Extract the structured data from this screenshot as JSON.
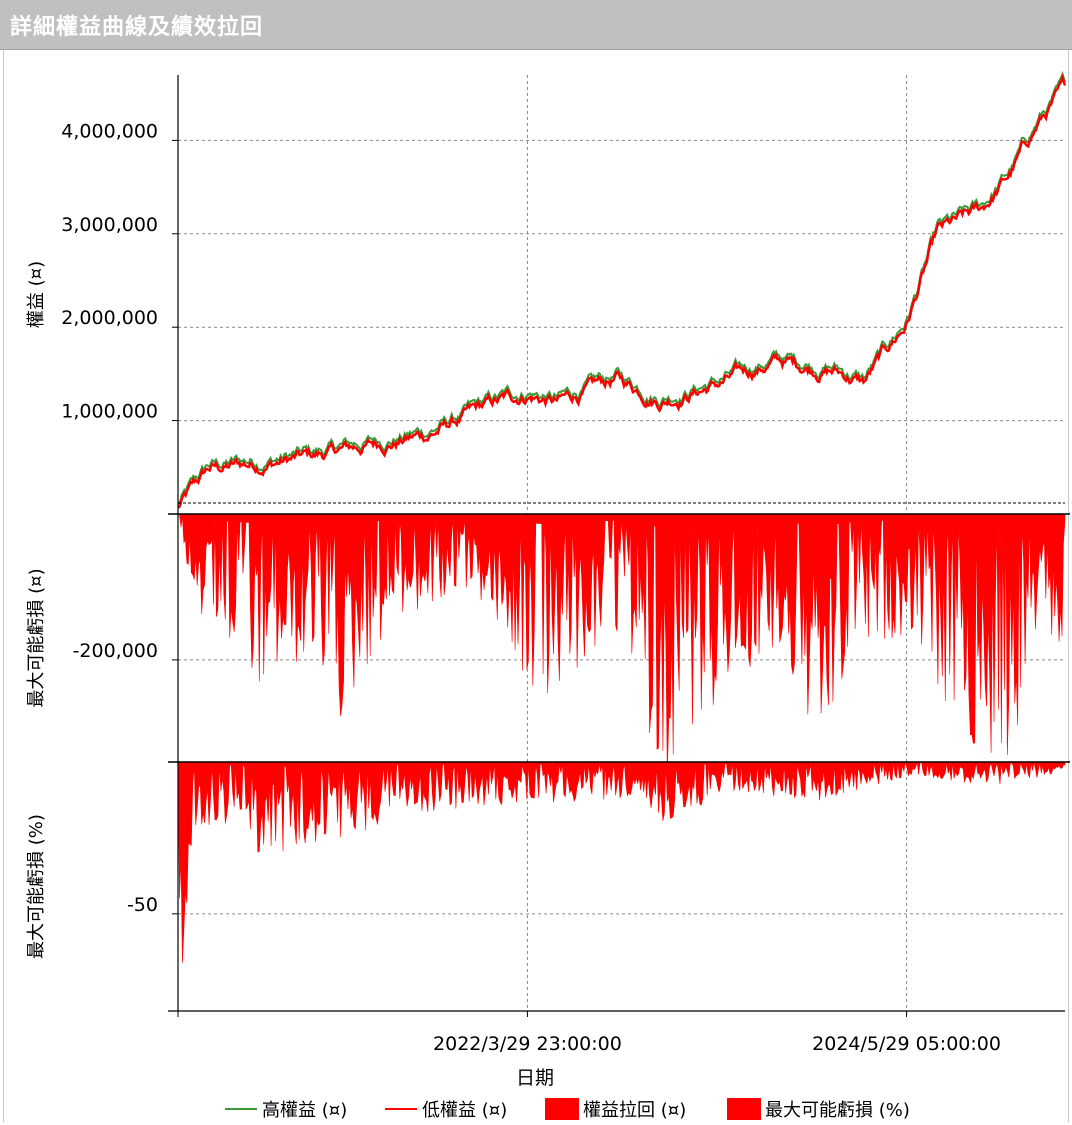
{
  "header": {
    "title": "詳細權益曲線及績效拉回"
  },
  "colors": {
    "high": "#3a9a3a",
    "low": "#ff0000",
    "fill": "#ff0000",
    "title_bg": "#c0c0c0"
  },
  "chart_data": [
    {
      "type": "line",
      "ylabel": "權益 (¤)",
      "ylim": [
        0,
        4700000
      ],
      "yticks": [
        "1,000,000",
        "2,000,000",
        "3,000,000",
        "4,000,000"
      ],
      "ytick_values": [
        1000000,
        2000000,
        3000000,
        4000000
      ],
      "series": [
        {
          "name": "高權益 (¤)"
        },
        {
          "name": "低權益 (¤)"
        }
      ],
      "x": [
        "2020-03-29",
        "2020-06-01",
        "2020-09-01",
        "2021-01-01",
        "2021-06-01",
        "2021-09-01",
        "2022-01-01",
        "2022-03-29",
        "2022-06-01",
        "2022-10-01",
        "2023-01-01",
        "2023-05-01",
        "2023-09-01",
        "2024-01-01",
        "2024-03-01",
        "2024-05-29",
        "2024-08-01",
        "2024-11-01",
        "2025-01-01",
        "2025-03-01",
        "2025-04-25"
      ],
      "values": [
        80000,
        480000,
        550000,
        620000,
        780000,
        860000,
        1150000,
        1300000,
        1200000,
        1450000,
        1250000,
        1400000,
        1650000,
        1550000,
        1420000,
        2050000,
        3000000,
        3250000,
        3650000,
        4200000,
        4550000
      ]
    },
    {
      "type": "area",
      "ylabel": "最大可能虧損 (¤)",
      "ylim": [
        -340000,
        0
      ],
      "yticks": [
        "-200,000"
      ],
      "ytick_values": [
        -200000
      ],
      "series": [
        {
          "name": "權益拉回 (¤)"
        }
      ],
      "x": [
        "2020-03-29",
        "2020-04-15",
        "2020-07-01",
        "2020-09-10",
        "2020-11-20",
        "2021-03-01",
        "2021-06-15",
        "2021-09-10",
        "2021-12-01",
        "2022-05-01",
        "2022-08-01",
        "2022-10-15",
        "2023-01-05",
        "2023-03-15",
        "2023-06-01",
        "2023-09-01",
        "2023-12-01",
        "2024-02-15",
        "2024-06-15",
        "2024-09-01",
        "2024-11-10",
        "2025-01-10",
        "2025-02-25",
        "2025-04-25"
      ],
      "values": [
        0,
        -130000,
        -180000,
        -250000,
        -200000,
        -290000,
        -150000,
        -130000,
        -100000,
        -270000,
        -200000,
        -170000,
        -370000,
        -290000,
        -230000,
        -180000,
        -340000,
        -190000,
        -160000,
        -290000,
        -340000,
        -350000,
        -170000,
        -180000
      ]
    },
    {
      "type": "area",
      "ylabel": "最大可能虧損 (%)",
      "ylim": [
        -82,
        0
      ],
      "yticks": [
        "-50"
      ],
      "ytick_values": [
        -50
      ],
      "series": [
        {
          "name": "最大可能虧損 (%)"
        }
      ],
      "x": [
        "2020-03-29",
        "2020-04-01",
        "2020-04-10",
        "2020-05-01",
        "2020-07-01",
        "2020-09-10",
        "2021-03-01",
        "2021-06-15",
        "2021-12-01",
        "2022-05-01",
        "2022-10-15",
        "2023-01-05",
        "2023-06-01",
        "2023-12-01",
        "2024-06-15",
        "2024-11-10",
        "2025-01-10",
        "2025-04-25"
      ],
      "values": [
        0,
        -80,
        -65,
        -25,
        -20,
        -30,
        -29,
        -18,
        -15,
        -14,
        -12,
        -20,
        -10,
        -13,
        -4,
        -8,
        -7,
        -3
      ]
    }
  ],
  "x_axis": {
    "label": "日期",
    "ticks": [
      "2022/3/29 23:00:00",
      "2024/5/29 05:00:00"
    ],
    "range": [
      "2020-03-29",
      "2025-04-25"
    ],
    "tick_dates": [
      "2022-03-29",
      "2024-05-29"
    ]
  },
  "legend": {
    "placement": "bottom",
    "items": [
      {
        "label": "高權益 (¤)",
        "kind": "line",
        "color": "#3a9a3a"
      },
      {
        "label": "低權益 (¤)",
        "kind": "line",
        "color": "#ff0000"
      },
      {
        "label": "權益拉回 (¤)",
        "kind": "box",
        "color": "#ff0000"
      },
      {
        "label": "最大可能虧損 (%)",
        "kind": "box",
        "color": "#ff0000"
      }
    ]
  }
}
